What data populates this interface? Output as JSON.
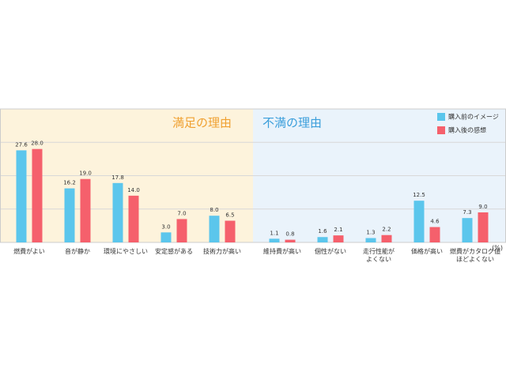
{
  "chart_data": {
    "type": "bar",
    "group_labels": [
      "満足の理由",
      "不満の理由"
    ],
    "group_colors": [
      "#fdf3dc",
      "#eaf3fb"
    ],
    "group_label_colors": [
      "#f0a030",
      "#3a9edb"
    ],
    "unit": "(%)",
    "categories": [
      "燃費がよい",
      "音が静か",
      "環境にやさしい",
      "安定感がある",
      "技術力が高い",
      "維持費が高い",
      "個性がない",
      "走行性能が\nよくない",
      "価格が高い",
      "燃費がカタログ値\nほどよくない"
    ],
    "series": [
      {
        "name": "購入前のイメージ",
        "color": "#5bc6ec",
        "values": [
          27.6,
          16.2,
          17.8,
          3.0,
          8.0,
          1.1,
          1.6,
          1.3,
          12.5,
          7.3
        ],
        "value_labels": [
          "27.6",
          "16.2",
          "17.8",
          "3.0",
          "8.0",
          "1.1",
          "1.6",
          "1.3",
          "12.5",
          "7.3"
        ]
      },
      {
        "name": "購入後の感想",
        "color": "#f5606c",
        "values": [
          28.0,
          19.0,
          14.0,
          7.0,
          6.5,
          0.8,
          2.1,
          2.2,
          4.6,
          9.0
        ],
        "value_labels": [
          "28.0",
          "19.0",
          "14.0",
          "7.0",
          "6.5",
          "0.8",
          "2.1",
          "2.2",
          "4.6",
          "9.0"
        ]
      }
    ],
    "ylim": [
      0,
      40
    ],
    "yticks": [
      0,
      10,
      20,
      30
    ],
    "grid": true,
    "legend": "top-right"
  }
}
